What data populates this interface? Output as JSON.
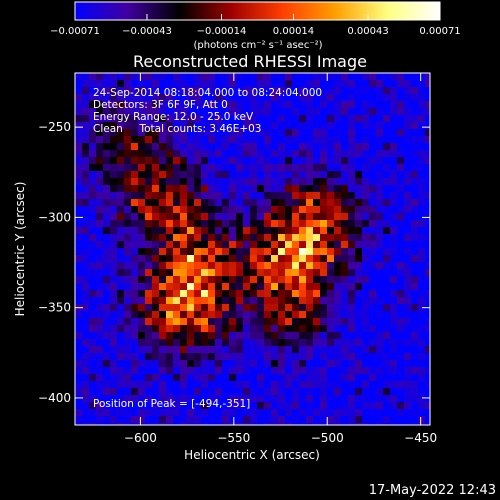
{
  "chart_data": {
    "type": "heatmap",
    "title": "Reconstructed RHESSI Image",
    "xlabel": "Heliocentric X (arcsec)",
    "ylabel": "Heliocentric Y (arcsec)",
    "xlim": [
      -635,
      -445
    ],
    "ylim": [
      -415,
      -220
    ],
    "xticks": [
      -600,
      -550,
      -500,
      -450
    ],
    "yticks": [
      -250,
      -300,
      -350,
      -400
    ],
    "xtick_labels": [
      "−600",
      "−550",
      "−500",
      "−450"
    ],
    "ytick_labels": [
      "−250",
      "−300",
      "−350",
      "−400"
    ],
    "colorbar": {
      "range": [
        -0.00071,
        0.00071
      ],
      "ticks": [
        -0.00071,
        -0.00043,
        -0.00014,
        0.00014,
        0.00043,
        0.00071
      ],
      "tick_labels": [
        "−0.00071",
        "−0.00043",
        "−0.00014",
        "0.00014",
        "0.00043",
        "0.00071"
      ],
      "units": "(photons cm⁻² s⁻¹ asec⁻²)",
      "colors": [
        "#0000ff",
        "#4000a0",
        "#000000",
        "#a00000",
        "#ff4000",
        "#ffa000",
        "#ffff80",
        "#ffffff"
      ]
    },
    "sources": [
      {
        "x": -577,
        "y": -352,
        "intensity": 1.0
      },
      {
        "x": -570,
        "y": -325,
        "intensity": 0.8
      },
      {
        "x": -583,
        "y": -295,
        "intensity": 0.6
      },
      {
        "x": -520,
        "y": -320,
        "intensity": 0.95
      },
      {
        "x": -505,
        "y": -300,
        "intensity": 0.75
      },
      {
        "x": -520,
        "y": -350,
        "intensity": 0.65
      },
      {
        "x": -600,
        "y": -275,
        "intensity": 0.45
      },
      {
        "x": -612,
        "y": -250,
        "intensity": 0.35
      }
    ],
    "peak": [
      -494,
      -351
    ]
  },
  "info": {
    "line1": "24-Sep-2014 08:18:04.000 to 08:24:04.000",
    "line2": "Detectors: 3F 6F 9F, Att 0",
    "line3": "Energy Range: 12.0 - 25.0 keV",
    "line4": "Clean     Total counts: 3.46E+03",
    "peak_text": "Position of Peak = [-494,-351]"
  },
  "timestamp": "17-May-2022 12:43"
}
